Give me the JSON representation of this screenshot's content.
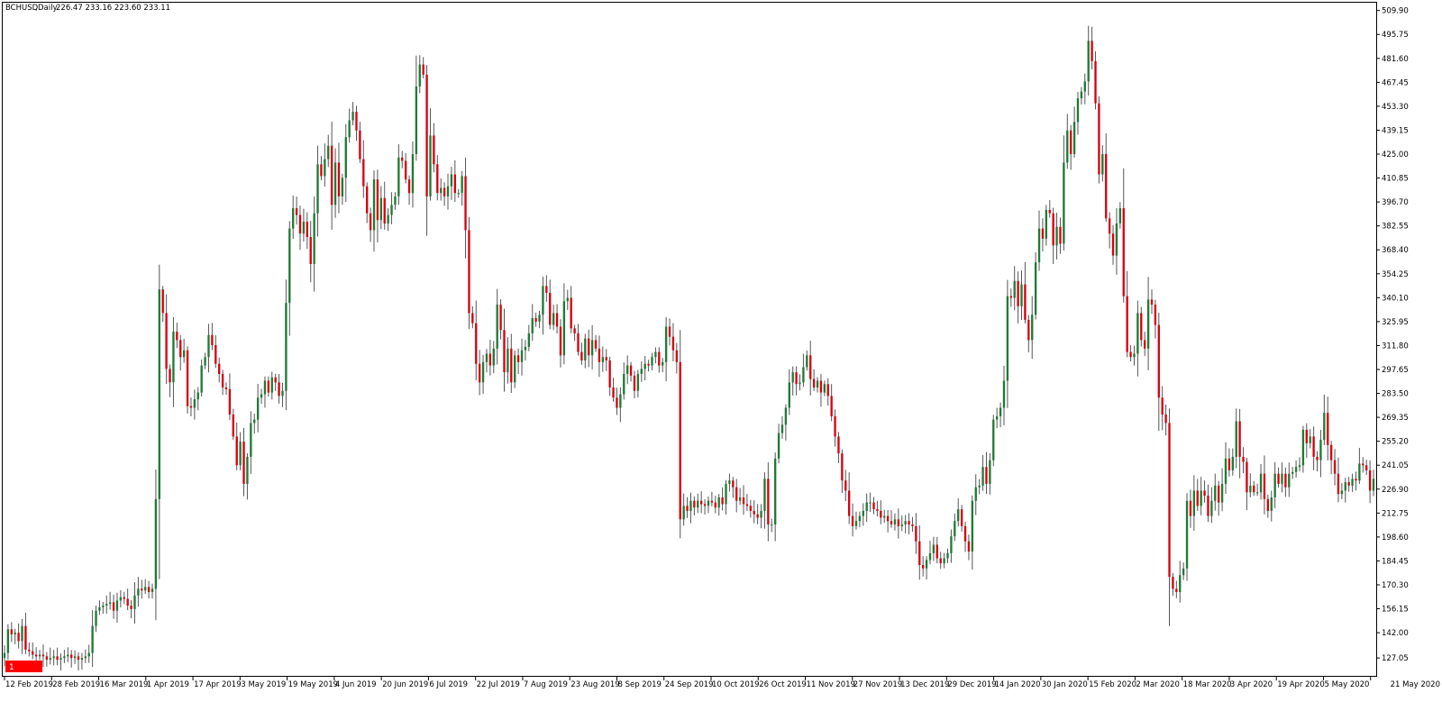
{
  "header": {
    "symbol": "BCHUSD",
    "timeframe": "Daily",
    "ohlc": "226.47 233.16 223.60 233.11"
  },
  "marker": {
    "label": "1"
  },
  "colors": {
    "up": "#1f7a35",
    "down": "#d7000f",
    "wick": "#555555",
    "frame": "#000000",
    "marker": "#ff0000"
  },
  "chart_data": {
    "type": "candlestick",
    "symbol": "BCHUSD",
    "timeframe": "Daily",
    "last_ohlc": {
      "open": 226.47,
      "high": 233.16,
      "low": 223.6,
      "close": 233.11
    },
    "ylim": [
      117.0,
      514.0
    ],
    "y_ticks": [
      "127.05",
      "142.00",
      "156.15",
      "170.30",
      "184.45",
      "198.60",
      "212.75",
      "226.90",
      "241.05",
      "255.20",
      "269.35",
      "283.50",
      "297.65",
      "311.80",
      "325.95",
      "340.10",
      "354.25",
      "368.40",
      "382.55",
      "396.70",
      "410.85",
      "425.00",
      "439.15",
      "453.30",
      "467.45",
      "481.60",
      "495.75",
      "509.90"
    ],
    "x_ticks": [
      "12 Feb 2019",
      "28 Feb 2019",
      "16 Mar 2019",
      "1 Apr 2019",
      "17 Apr 2019",
      "3 May 2019",
      "19 May 2019",
      "4 Jun 2019",
      "20 Jun 2019",
      "6 Jul 2019",
      "22 Jul 2019",
      "7 Aug 2019",
      "23 Aug 2019",
      "8 Sep 2019",
      "24 Sep 2019",
      "10 Oct 2019",
      "26 Oct 2019",
      "11 Nov 2019",
      "27 Nov 2019",
      "13 Dec 2019",
      "29 Dec 2019",
      "14 Jan 2020",
      "30 Jan 2020",
      "15 Feb 2020",
      "2 Mar 2020",
      "18 Mar 2020",
      "3 Apr 2020",
      "19 Apr 2020",
      "5 May 2020",
      "21 May 2020"
    ],
    "start_date": "2019-02-12",
    "end_date": "2020-05-22",
    "closes": [
      130,
      144,
      141,
      142,
      137,
      146,
      132,
      131,
      129,
      128,
      129,
      128,
      126,
      127,
      128,
      126,
      127,
      128,
      129,
      127,
      128,
      126,
      127,
      128,
      130,
      146,
      155,
      157,
      158,
      159,
      160,
      155,
      161,
      163,
      162,
      158,
      156,
      164,
      168,
      167,
      169,
      166,
      168,
      221,
      345,
      331,
      298,
      290,
      320,
      315,
      305,
      309,
      276,
      275,
      280,
      284,
      300,
      305,
      318,
      312,
      301,
      295,
      287,
      286,
      271,
      258,
      241,
      255,
      230,
      246,
      266,
      268,
      281,
      283,
      291,
      284,
      293,
      290,
      282,
      285,
      337,
      381,
      393,
      389,
      378,
      385,
      376,
      360,
      390,
      419,
      412,
      422,
      430,
      395,
      420,
      400,
      411,
      435,
      445,
      450,
      439,
      422,
      406,
      390,
      380,
      410,
      386,
      399,
      384,
      389,
      395,
      400,
      423,
      421,
      410,
      402,
      425,
      465,
      478,
      472,
      400,
      436,
      419,
      402,
      405,
      400,
      406,
      413,
      402,
      402,
      412,
      380,
      331,
      325,
      301,
      290,
      302,
      307,
      300,
      310,
      336,
      321,
      296,
      310,
      290,
      306,
      302,
      309,
      311,
      319,
      328,
      326,
      330,
      347,
      343,
      324,
      331,
      323,
      306,
      338,
      340,
      322,
      319,
      308,
      303,
      316,
      306,
      315,
      310,
      302,
      305,
      303,
      287,
      281,
      275,
      283,
      295,
      300,
      294,
      285,
      295,
      298,
      301,
      300,
      305,
      308,
      300,
      302,
      323,
      317,
      309,
      302,
      209,
      217,
      214,
      220,
      216,
      220,
      218,
      217,
      220,
      219,
      216,
      222,
      218,
      230,
      232,
      228,
      220,
      222,
      218,
      217,
      214,
      212,
      210,
      214,
      233,
      206,
      206,
      245,
      260,
      265,
      275,
      290,
      296,
      289,
      290,
      299,
      306,
      292,
      287,
      291,
      284,
      289,
      282,
      270,
      258,
      248,
      232,
      226,
      211,
      205,
      208,
      211,
      214,
      219,
      219,
      215,
      214,
      210,
      211,
      208,
      206,
      209,
      205,
      206,
      208,
      206,
      205,
      196,
      182,
      180,
      185,
      189,
      194,
      186,
      183,
      186,
      189,
      199,
      208,
      215,
      205,
      196,
      190,
      220,
      228,
      229,
      240,
      230,
      244,
      268,
      270,
      275,
      291,
      341,
      340,
      350,
      335,
      348,
      327,
      315,
      330,
      361,
      381,
      375,
      392,
      390,
      371,
      382,
      372,
      420,
      439,
      425,
      444,
      458,
      462,
      468,
      492,
      480,
      455,
      413,
      425,
      387,
      378,
      365,
      384,
      393,
      341,
      308,
      305,
      307,
      331,
      315,
      310,
      339,
      336,
      324,
      281,
      271,
      266,
      175,
      168,
      166,
      176,
      180,
      220,
      211,
      226,
      217,
      226,
      223,
      211,
      220,
      229,
      219,
      230,
      245,
      238,
      246,
      267,
      246,
      243,
      225,
      229,
      225,
      225,
      236,
      221,
      214,
      222,
      236,
      230,
      236,
      228,
      236,
      237,
      240,
      241,
      262,
      254,
      258,
      246,
      244,
      256,
      272,
      253,
      244,
      236,
      224,
      226,
      231,
      229,
      233,
      232,
      242,
      241,
      238,
      226,
      233
    ]
  }
}
